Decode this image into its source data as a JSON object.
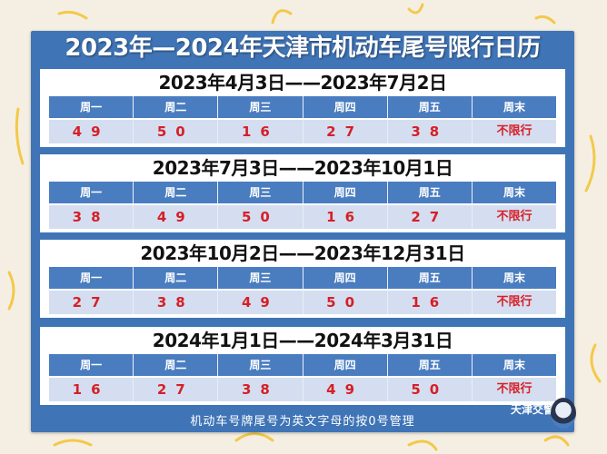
{
  "title": "2023年—2024年天津市机动车尾号限行日历",
  "weekday_headers": [
    "周一",
    "周二",
    "周三",
    "周四",
    "周五",
    "周末"
  ],
  "sections": [
    {
      "period": "2023年4月3日——2023年7月2日",
      "values": [
        "49",
        "50",
        "16",
        "27",
        "38",
        "不限行"
      ]
    },
    {
      "period": "2023年7月3日——2023年10月1日",
      "values": [
        "38",
        "49",
        "50",
        "16",
        "27",
        "不限行"
      ]
    },
    {
      "period": "2023年10月2日——2023年12月31日",
      "values": [
        "27",
        "38",
        "49",
        "50",
        "16",
        "不限行"
      ]
    },
    {
      "period": "2024年1月1日——2024年3月31日",
      "values": [
        "16",
        "27",
        "38",
        "49",
        "50",
        "不限行"
      ]
    }
  ],
  "footer_note": "机动车号牌尾号为英文字母的按0号管理",
  "brand": "天津交警",
  "colors": {
    "panel": "#3f74b6",
    "header_row": "#4a7dc0",
    "data_row": "#d5def0",
    "restricted_digits": "#d61f26",
    "background": "#f5efe3"
  }
}
